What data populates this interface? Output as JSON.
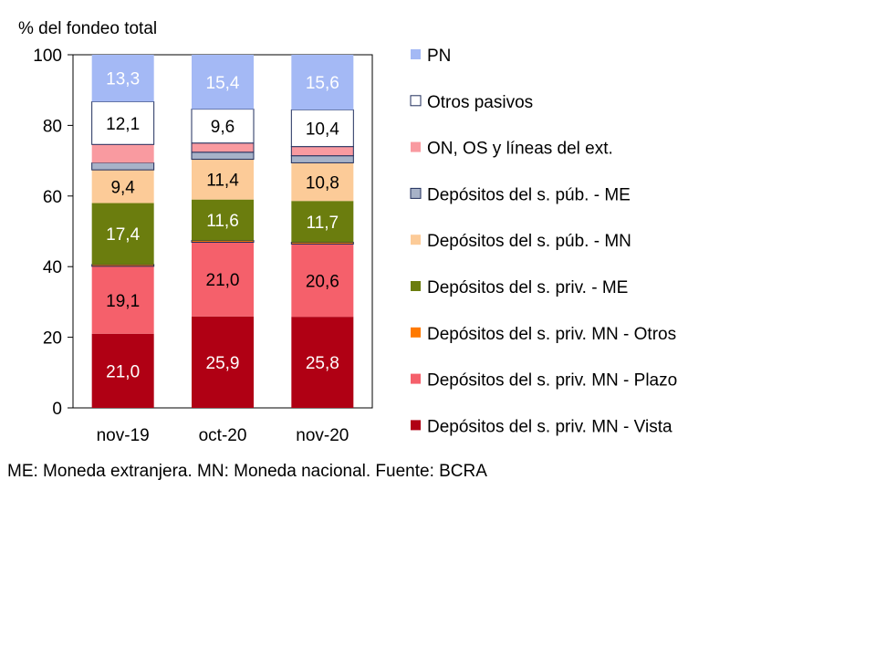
{
  "chart_data": {
    "type": "bar",
    "stacked": true,
    "ylabel": "% del fondeo total",
    "ylim": [
      0,
      100
    ],
    "yticks": [
      0,
      20,
      40,
      60,
      80,
      100
    ],
    "categories": [
      "nov-19",
      "oct-20",
      "nov-20"
    ],
    "legend_position": "right",
    "series": [
      {
        "name": "Depósitos del s. priv. MN - Vista",
        "color": "#B00014",
        "label_color": "#ffffff",
        "values": [
          21.0,
          25.9,
          25.8
        ],
        "labels": [
          "21,0",
          "25,9",
          "25,8"
        ]
      },
      {
        "name": "Depósitos del s. priv. MN - Plazo",
        "color": "#F5606B",
        "label_color": "#000000",
        "values": [
          19.1,
          21.0,
          20.6
        ],
        "labels": [
          "19,1",
          "21,0",
          "20,6"
        ]
      },
      {
        "name": "Depósitos del s. priv. MN - Otros",
        "color": "#FF7A00",
        "label_color": "#000000",
        "values": [
          0.5,
          0.5,
          0.5
        ],
        "labels": [
          "",
          "",
          ""
        ]
      },
      {
        "name": "Depósitos del s. priv. - ME",
        "color": "#6B7D0E",
        "label_color": "#ffffff",
        "values": [
          17.4,
          11.6,
          11.7
        ],
        "labels": [
          "17,4",
          "11,6",
          "11,7"
        ]
      },
      {
        "name": "Depósitos del s. púb. - MN",
        "color": "#FCCB98",
        "label_color": "#000000",
        "values": [
          9.4,
          11.4,
          10.8
        ],
        "labels": [
          "9,4",
          "11,4",
          "10,8"
        ]
      },
      {
        "name": "Depósitos del s. púb. - ME",
        "color": "#A7B2C8",
        "label_color": "#000000",
        "values": [
          2.0,
          2.0,
          2.0
        ],
        "labels": [
          "",
          "",
          ""
        ]
      },
      {
        "name": "ON, OS y líneas del ext.",
        "color": "#F99AA0",
        "label_color": "#000000",
        "values": [
          5.2,
          2.6,
          2.6
        ],
        "labels": [
          "",
          "",
          ""
        ]
      },
      {
        "name": "Otros pasivos",
        "color": "#ffffff",
        "label_color": "#000000",
        "values": [
          12.1,
          9.6,
          10.4
        ],
        "labels": [
          "12,1",
          "9,6",
          "10,4"
        ]
      },
      {
        "name": "PN",
        "color": "#A4B9F5",
        "label_color": "#ffffff",
        "values": [
          13.3,
          15.4,
          15.6
        ],
        "labels": [
          "13,3",
          "15,4",
          "15,6"
        ]
      }
    ]
  },
  "footnote": "ME: Moneda extranjera. MN: Moneda nacional. Fuente: BCRA"
}
